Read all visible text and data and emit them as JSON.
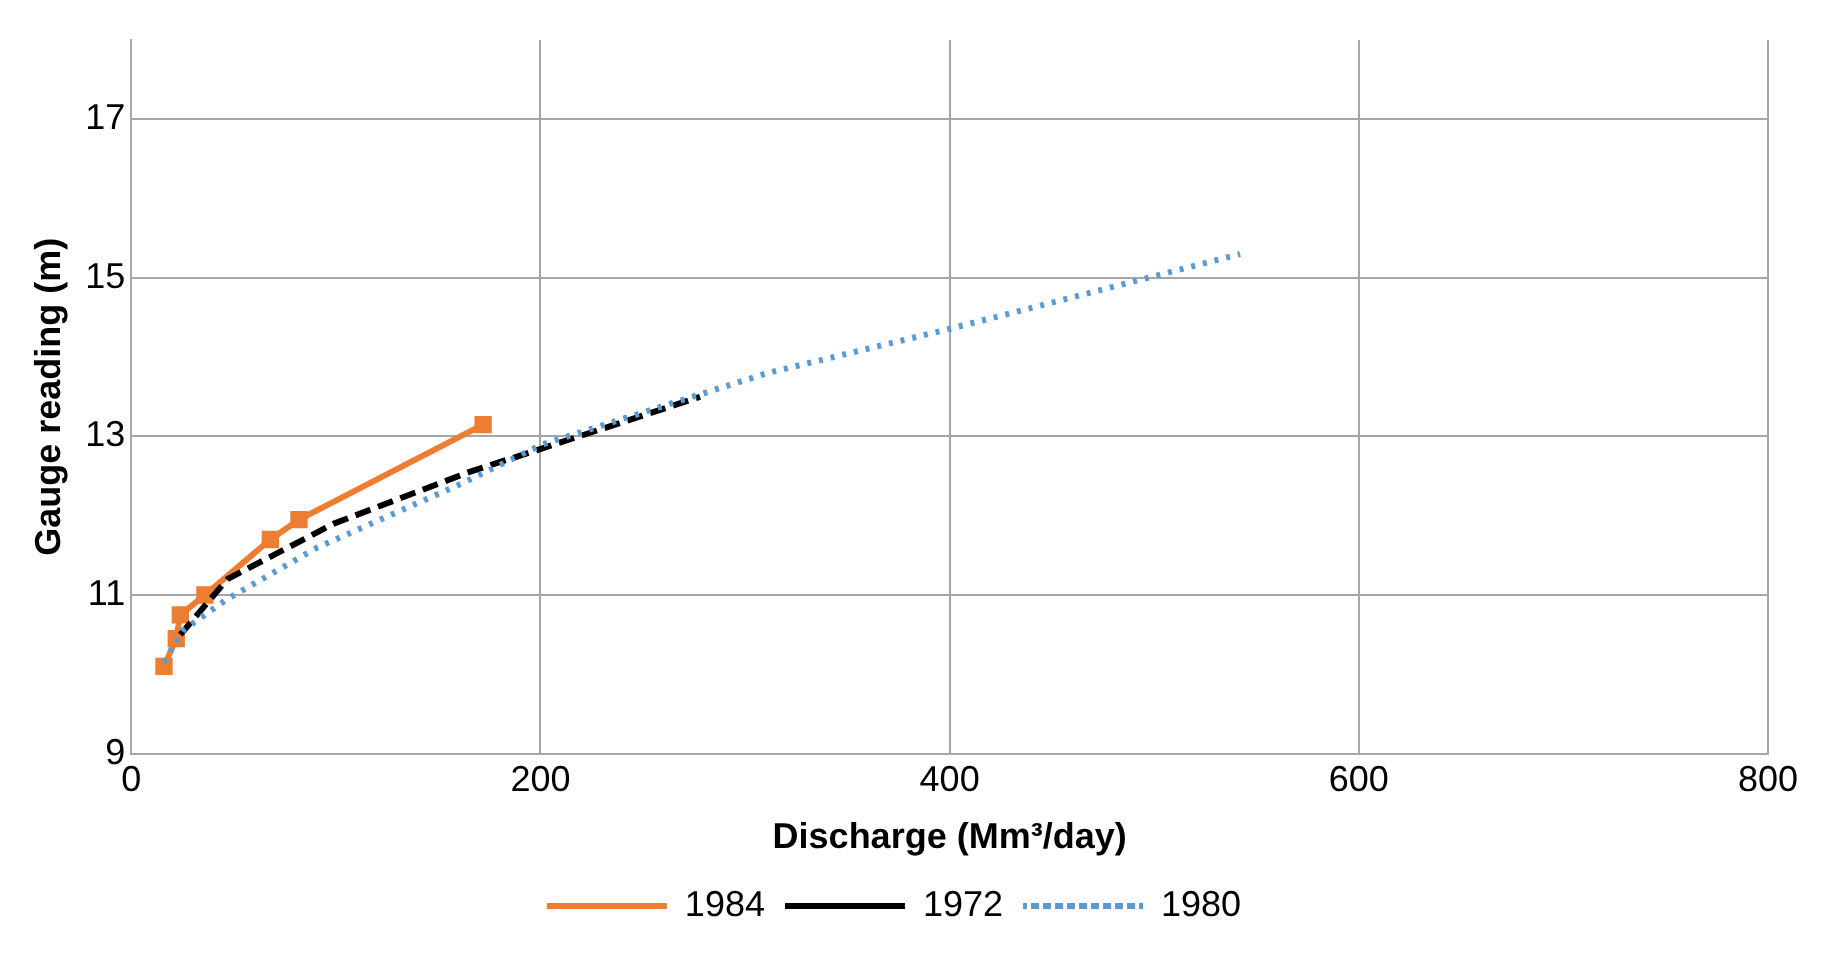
{
  "chart_data": {
    "type": "line",
    "xlabel": "Discharge (Mm³/day)",
    "ylabel": "Gauge reading (m)",
    "xlim": [
      0,
      800
    ],
    "xticks": [
      0,
      200,
      400,
      600,
      800
    ],
    "ylim": [
      9,
      18
    ],
    "yticks": [
      9,
      11,
      13,
      15,
      17
    ],
    "grid": true,
    "legend": "bottom",
    "series": [
      {
        "name": "1984",
        "color": "#ed7d31",
        "marker": "square",
        "line_style": "solid",
        "x": [
          16,
          22,
          24,
          36,
          68,
          82,
          172
        ],
        "values": [
          10.1,
          10.45,
          10.75,
          11.0,
          11.7,
          11.95,
          13.15
        ]
      },
      {
        "name": "1972",
        "color": "#000000",
        "marker": "none",
        "line_style": "dashed",
        "x": [
          24,
          47,
          99,
          165,
          201,
          278
        ],
        "values": [
          10.5,
          11.2,
          11.9,
          12.55,
          12.85,
          13.5
        ]
      },
      {
        "name": "1980",
        "color": "#5b9bd5",
        "marker": "none",
        "line_style": "dotted",
        "x": [
          16,
          25,
          47,
          91,
          161,
          201,
          311,
          399,
          542
        ],
        "values": [
          10.15,
          10.55,
          10.95,
          11.6,
          12.4,
          12.9,
          13.8,
          14.35,
          15.3
        ]
      }
    ]
  }
}
